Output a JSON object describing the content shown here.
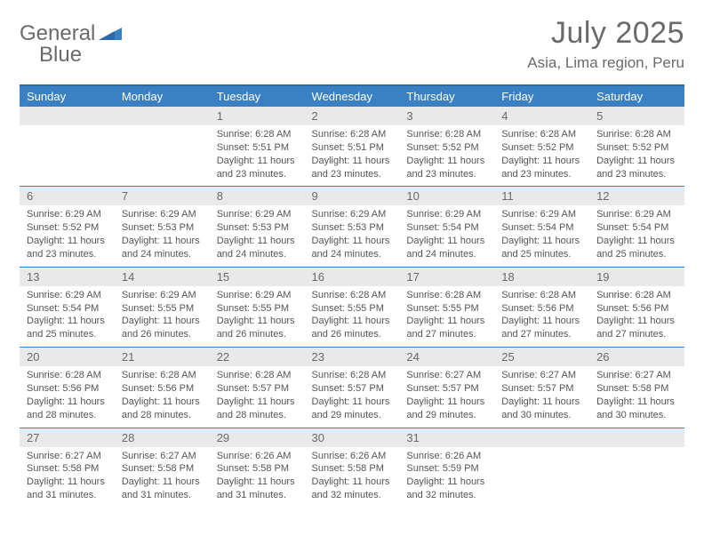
{
  "logo": {
    "text_a": "General",
    "text_b": "Blue",
    "mark_color": "#3a81c4"
  },
  "title": "July 2025",
  "location": "Asia, Lima region, Peru",
  "colors": {
    "header_bg": "#3a81c4",
    "header_border": "#2a6aa8",
    "daynum_bg": "#e9e9e9",
    "text": "#555555",
    "cell_border": "#3a81c4"
  },
  "typography": {
    "title_fontsize": 34,
    "location_fontsize": 17,
    "dayhead_fontsize": 13,
    "daynum_fontsize": 13,
    "body_fontsize": 11
  },
  "day_headers": [
    "Sunday",
    "Monday",
    "Tuesday",
    "Wednesday",
    "Thursday",
    "Friday",
    "Saturday"
  ],
  "weeks": [
    [
      null,
      null,
      {
        "n": "1",
        "sr": "6:28 AM",
        "ss": "5:51 PM",
        "dl": "11 hours and 23 minutes."
      },
      {
        "n": "2",
        "sr": "6:28 AM",
        "ss": "5:51 PM",
        "dl": "11 hours and 23 minutes."
      },
      {
        "n": "3",
        "sr": "6:28 AM",
        "ss": "5:52 PM",
        "dl": "11 hours and 23 minutes."
      },
      {
        "n": "4",
        "sr": "6:28 AM",
        "ss": "5:52 PM",
        "dl": "11 hours and 23 minutes."
      },
      {
        "n": "5",
        "sr": "6:28 AM",
        "ss": "5:52 PM",
        "dl": "11 hours and 23 minutes."
      }
    ],
    [
      {
        "n": "6",
        "sr": "6:29 AM",
        "ss": "5:52 PM",
        "dl": "11 hours and 23 minutes."
      },
      {
        "n": "7",
        "sr": "6:29 AM",
        "ss": "5:53 PM",
        "dl": "11 hours and 24 minutes."
      },
      {
        "n": "8",
        "sr": "6:29 AM",
        "ss": "5:53 PM",
        "dl": "11 hours and 24 minutes."
      },
      {
        "n": "9",
        "sr": "6:29 AM",
        "ss": "5:53 PM",
        "dl": "11 hours and 24 minutes."
      },
      {
        "n": "10",
        "sr": "6:29 AM",
        "ss": "5:54 PM",
        "dl": "11 hours and 24 minutes."
      },
      {
        "n": "11",
        "sr": "6:29 AM",
        "ss": "5:54 PM",
        "dl": "11 hours and 25 minutes."
      },
      {
        "n": "12",
        "sr": "6:29 AM",
        "ss": "5:54 PM",
        "dl": "11 hours and 25 minutes."
      }
    ],
    [
      {
        "n": "13",
        "sr": "6:29 AM",
        "ss": "5:54 PM",
        "dl": "11 hours and 25 minutes."
      },
      {
        "n": "14",
        "sr": "6:29 AM",
        "ss": "5:55 PM",
        "dl": "11 hours and 26 minutes."
      },
      {
        "n": "15",
        "sr": "6:29 AM",
        "ss": "5:55 PM",
        "dl": "11 hours and 26 minutes."
      },
      {
        "n": "16",
        "sr": "6:28 AM",
        "ss": "5:55 PM",
        "dl": "11 hours and 26 minutes."
      },
      {
        "n": "17",
        "sr": "6:28 AM",
        "ss": "5:55 PM",
        "dl": "11 hours and 27 minutes."
      },
      {
        "n": "18",
        "sr": "6:28 AM",
        "ss": "5:56 PM",
        "dl": "11 hours and 27 minutes."
      },
      {
        "n": "19",
        "sr": "6:28 AM",
        "ss": "5:56 PM",
        "dl": "11 hours and 27 minutes."
      }
    ],
    [
      {
        "n": "20",
        "sr": "6:28 AM",
        "ss": "5:56 PM",
        "dl": "11 hours and 28 minutes."
      },
      {
        "n": "21",
        "sr": "6:28 AM",
        "ss": "5:56 PM",
        "dl": "11 hours and 28 minutes."
      },
      {
        "n": "22",
        "sr": "6:28 AM",
        "ss": "5:57 PM",
        "dl": "11 hours and 28 minutes."
      },
      {
        "n": "23",
        "sr": "6:28 AM",
        "ss": "5:57 PM",
        "dl": "11 hours and 29 minutes."
      },
      {
        "n": "24",
        "sr": "6:27 AM",
        "ss": "5:57 PM",
        "dl": "11 hours and 29 minutes."
      },
      {
        "n": "25",
        "sr": "6:27 AM",
        "ss": "5:57 PM",
        "dl": "11 hours and 30 minutes."
      },
      {
        "n": "26",
        "sr": "6:27 AM",
        "ss": "5:58 PM",
        "dl": "11 hours and 30 minutes."
      }
    ],
    [
      {
        "n": "27",
        "sr": "6:27 AM",
        "ss": "5:58 PM",
        "dl": "11 hours and 31 minutes."
      },
      {
        "n": "28",
        "sr": "6:27 AM",
        "ss": "5:58 PM",
        "dl": "11 hours and 31 minutes."
      },
      {
        "n": "29",
        "sr": "6:26 AM",
        "ss": "5:58 PM",
        "dl": "11 hours and 31 minutes."
      },
      {
        "n": "30",
        "sr": "6:26 AM",
        "ss": "5:58 PM",
        "dl": "11 hours and 32 minutes."
      },
      {
        "n": "31",
        "sr": "6:26 AM",
        "ss": "5:59 PM",
        "dl": "11 hours and 32 minutes."
      },
      null,
      null
    ]
  ],
  "labels": {
    "sunrise": "Sunrise:",
    "sunset": "Sunset:",
    "daylight": "Daylight:"
  }
}
